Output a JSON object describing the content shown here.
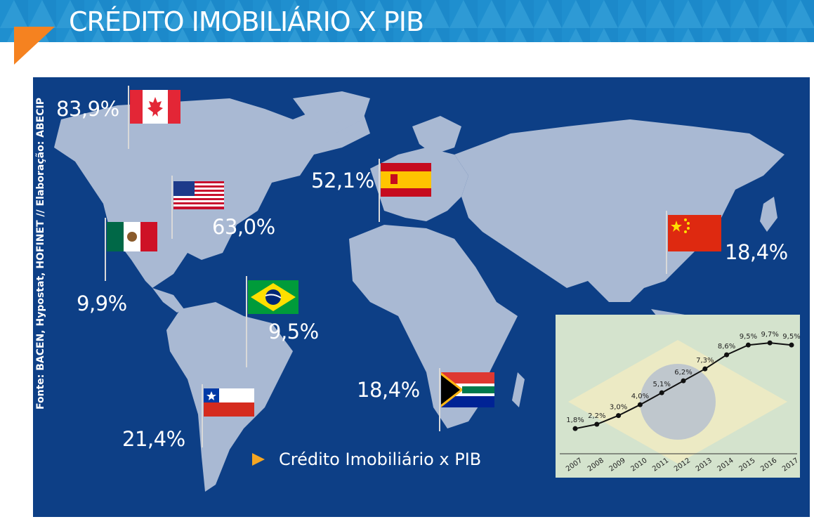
{
  "header": {
    "title": "CRÉDITO IMOBILIÁRIO X PIB",
    "bar_color": "#1f8fcf",
    "accent_color": "#f58220"
  },
  "map": {
    "background_color": "#0d3f86",
    "land_color": "#a9b9d3",
    "source_note": "Fonte: BACEN, Hypostat, HOFINET // Elaboração: ABECIP",
    "legend_label": "Crédito Imobiliário x PIB",
    "countries": [
      {
        "id": "canada",
        "flag": "canada-flag",
        "value": "83,9%"
      },
      {
        "id": "usa",
        "flag": "usa-flag",
        "value": "63,0%"
      },
      {
        "id": "mexico",
        "flag": "mexico-flag",
        "value": "9,9%"
      },
      {
        "id": "brazil",
        "flag": "brazil-flag",
        "value": "9,5%"
      },
      {
        "id": "chile",
        "flag": "chile-flag",
        "value": "21,4%"
      },
      {
        "id": "spain",
        "flag": "spain-flag",
        "value": "52,1%"
      },
      {
        "id": "south-africa",
        "flag": "south-africa-flag",
        "value": "18,4%"
      },
      {
        "id": "china",
        "flag": "china-flag",
        "value": "18,4%"
      }
    ]
  },
  "chart_data": {
    "type": "line",
    "x": [
      "2007",
      "2008",
      "2009",
      "2010",
      "2011",
      "2012",
      "2013",
      "2014",
      "2015",
      "2016",
      "2017"
    ],
    "series": [
      {
        "values": [
          1.8,
          2.2,
          3.0,
          4.0,
          5.1,
          6.2,
          7.3,
          8.6,
          9.5,
          9.7,
          9.5
        ]
      }
    ],
    "data_labels": [
      "1,8%",
      "2,2%",
      "3,0%",
      "4,0%",
      "5,1%",
      "6,2%",
      "7,3%",
      "8,6%",
      "9,5%",
      "9,7%",
      "9,5%"
    ],
    "ylim": [
      0,
      11
    ],
    "grid": false,
    "line_color": "#111111"
  }
}
